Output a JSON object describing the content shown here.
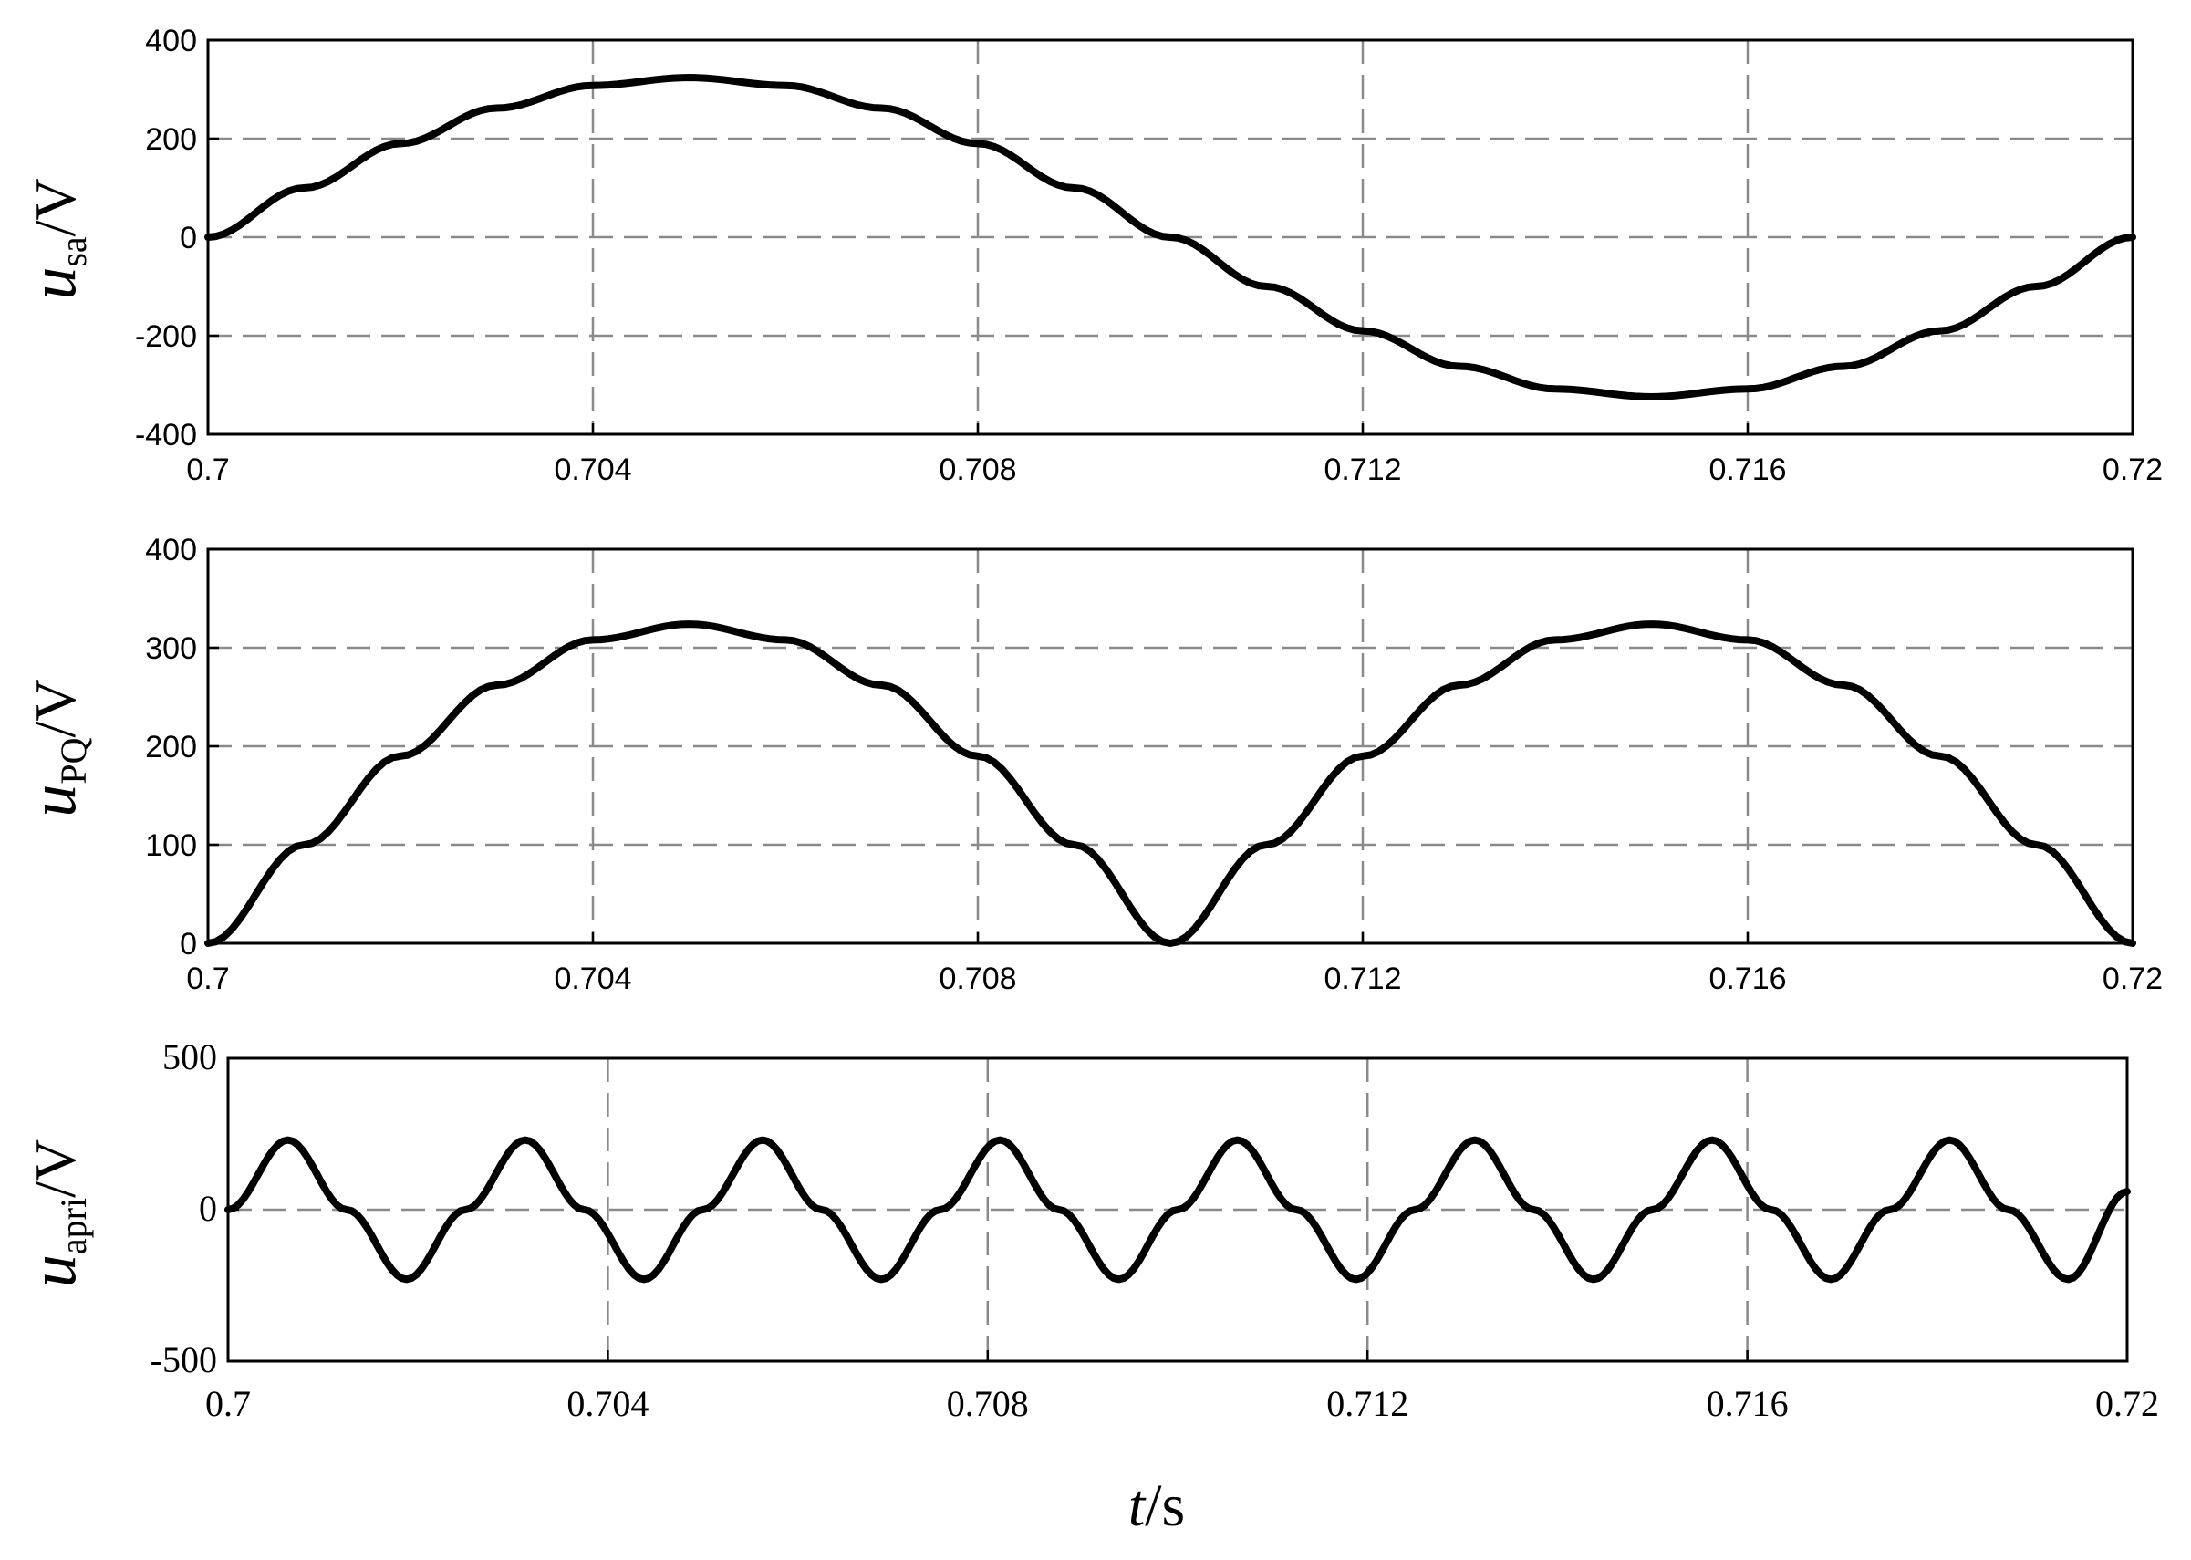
{
  "figure": {
    "xlabel": {
      "var": "t",
      "unit": "/s"
    }
  },
  "chart_data": [
    {
      "type": "line",
      "ylabel": {
        "var": "u",
        "sub": "sa",
        "unit": "/V"
      },
      "xlim": [
        0.7,
        0.72
      ],
      "ylim": [
        -400,
        400
      ],
      "xticks": [
        0.7,
        0.704,
        0.708,
        0.712,
        0.716,
        0.72
      ],
      "xtick_labels": [
        "0.7",
        "0.704",
        "0.708",
        "0.712",
        "0.716",
        "0.72"
      ],
      "yticks": [
        -400,
        -200,
        0,
        200,
        400
      ],
      "ytick_labels": [
        "-400",
        "-200",
        "0",
        "200",
        "400"
      ],
      "grid": true,
      "series": [
        {
          "color": "#000000",
          "x": [
            0.7,
            0.701,
            0.702,
            0.703,
            0.704,
            0.705,
            0.706,
            0.707,
            0.708,
            0.709,
            0.71,
            0.711,
            0.712,
            0.713,
            0.714,
            0.715,
            0.716,
            0.717,
            0.718,
            0.719,
            0.72
          ],
          "y": [
            0,
            100,
            190,
            262,
            308,
            324,
            308,
            262,
            190,
            100,
            0,
            -100,
            -190,
            -262,
            -308,
            -324,
            -308,
            -262,
            -190,
            -100,
            0
          ]
        }
      ]
    },
    {
      "type": "line",
      "ylabel": {
        "var": "u",
        "sub": "PQ",
        "unit": "/V"
      },
      "xlim": [
        0.7,
        0.72
      ],
      "ylim": [
        0,
        400
      ],
      "xticks": [
        0.7,
        0.704,
        0.708,
        0.712,
        0.716,
        0.72
      ],
      "xtick_labels": [
        "0.7",
        "0.704",
        "0.708",
        "0.712",
        "0.716",
        "0.72"
      ],
      "yticks": [
        0,
        100,
        200,
        300,
        400
      ],
      "ytick_labels": [
        "0",
        "100",
        "200",
        "300",
        "400"
      ],
      "grid": true,
      "series": [
        {
          "color": "#000000",
          "x": [
            0.7,
            0.701,
            0.702,
            0.703,
            0.704,
            0.705,
            0.706,
            0.707,
            0.708,
            0.709,
            0.71,
            0.711,
            0.712,
            0.713,
            0.714,
            0.715,
            0.716,
            0.717,
            0.718,
            0.719,
            0.72
          ],
          "y": [
            0,
            100,
            190,
            262,
            308,
            324,
            308,
            262,
            190,
            100,
            0,
            100,
            190,
            262,
            308,
            324,
            308,
            262,
            190,
            100,
            0
          ]
        }
      ]
    },
    {
      "type": "line",
      "ylabel": {
        "var": "u",
        "sub": "apri",
        "unit": "/V"
      },
      "xlim": [
        0.7,
        0.72
      ],
      "ylim": [
        -500,
        500
      ],
      "xticks": [
        0.7,
        0.704,
        0.708,
        0.712,
        0.716,
        0.72
      ],
      "xtick_labels": [
        "0.7",
        "0.704",
        "0.708",
        "0.712",
        "0.716",
        "0.72"
      ],
      "yticks": [
        -500,
        0,
        500
      ],
      "ytick_labels": [
        "-500",
        "0",
        "500"
      ],
      "grid": true,
      "series": [
        {
          "color": "#000000",
          "x": [
            0.7,
            0.70063,
            0.70125,
            0.70188,
            0.7025,
            0.70313,
            0.70375,
            0.70438,
            0.705,
            0.70563,
            0.70625,
            0.70688,
            0.7075,
            0.70813,
            0.70875,
            0.70938,
            0.71,
            0.71063,
            0.71125,
            0.71188,
            0.7125,
            0.71313,
            0.71375,
            0.71438,
            0.715,
            0.71563,
            0.71625,
            0.71688,
            0.7175,
            0.71813,
            0.71875,
            0.71938,
            0.72
          ],
          "y": [
            0,
            230,
            0,
            -230,
            0,
            230,
            0,
            -230,
            0,
            230,
            0,
            -230,
            0,
            230,
            0,
            -230,
            0,
            230,
            0,
            -230,
            0,
            230,
            0,
            -230,
            0,
            230,
            0,
            -230,
            0,
            230,
            0,
            -230,
            60
          ]
        }
      ]
    }
  ]
}
